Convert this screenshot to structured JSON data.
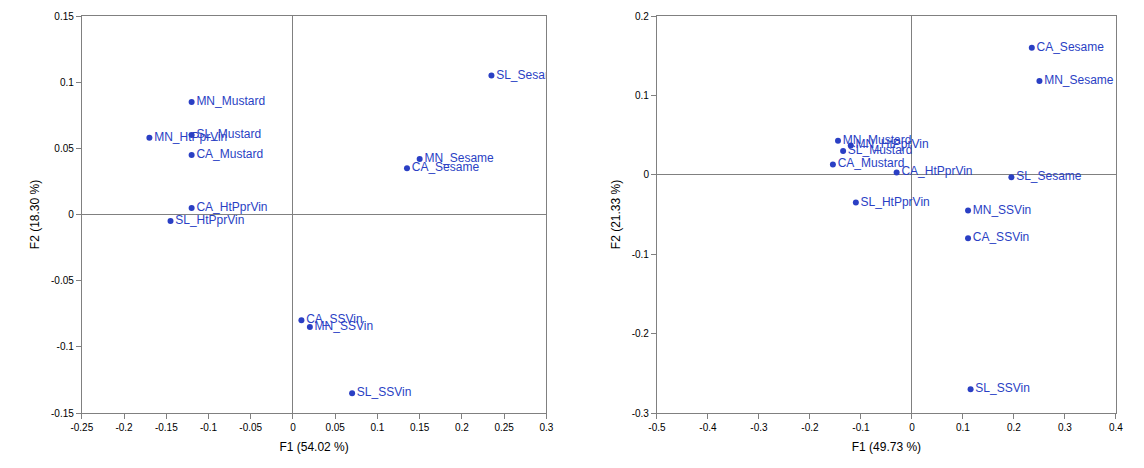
{
  "chart_data": [
    {
      "type": "scatter",
      "x_label": "F1 (54.02 %)",
      "y_label": "F2 (18.30 %)",
      "labels": [
        "SL_Sesame",
        "MN_Sesame",
        "CA_Sesame",
        "MN_Mustard",
        "SL_Mustard",
        "MN_HtPprVin",
        "CA_Mustard",
        "CA_HtPprVin",
        "SL_HtPprVin",
        "CA_SSVin",
        "MN_SSVin",
        "SL_SSVin"
      ],
      "x": [
        0.235,
        0.15,
        0.135,
        -0.12,
        -0.12,
        -0.17,
        -0.12,
        -0.12,
        -0.145,
        0.01,
        0.02,
        0.07
      ],
      "values": [
        0.105,
        0.042,
        0.035,
        0.085,
        0.06,
        0.058,
        0.045,
        0.005,
        -0.005,
        -0.08,
        -0.085,
        -0.135
      ],
      "color": "#2a3fc4",
      "marker": "circle",
      "grid": false,
      "xlim": [
        -0.25,
        0.3
      ],
      "xticks": [
        -0.25,
        -0.2,
        -0.15,
        -0.1,
        -0.05,
        0,
        0.05,
        0.1,
        0.15,
        0.2,
        0.25,
        0.3
      ],
      "ylim": [
        -0.15,
        0.15
      ],
      "yticks": [
        -0.15,
        -0.1,
        -0.05,
        0,
        0.05,
        0.1,
        0.15
      ]
    },
    {
      "type": "scatter",
      "x_label": "F1 (49.73 %)",
      "y_label": "F2 (21.33 %)",
      "labels": [
        "CA_Sesame",
        "MN_Sesame",
        "SL_Sesame",
        "MN_SSVin",
        "CA_SSVin",
        "SL_SSVin",
        "MN_Mustard",
        "SL_Mustard",
        "CA_Mustard",
        "MN_HtPprVin",
        "CA_HtPprVin",
        "SL_HtPprVin"
      ],
      "x": [
        0.235,
        0.25,
        0.195,
        0.11,
        0.11,
        0.115,
        -0.145,
        -0.135,
        -0.155,
        -0.12,
        -0.03,
        -0.11
      ],
      "values": [
        0.16,
        0.118,
        -0.003,
        -0.045,
        -0.08,
        -0.27,
        0.043,
        0.03,
        0.013,
        0.037,
        0.003,
        -0.035
      ],
      "color": "#2a3fc4",
      "marker": "circle",
      "grid": false,
      "xlim": [
        -0.5,
        0.4
      ],
      "xticks": [
        -0.5,
        -0.4,
        -0.3,
        -0.2,
        -0.1,
        0,
        0.1,
        0.2,
        0.3,
        0.4
      ],
      "ylim": [
        -0.3,
        0.2
      ],
      "yticks": [
        -0.3,
        -0.2,
        -0.1,
        0,
        0.1,
        0.2
      ]
    }
  ]
}
